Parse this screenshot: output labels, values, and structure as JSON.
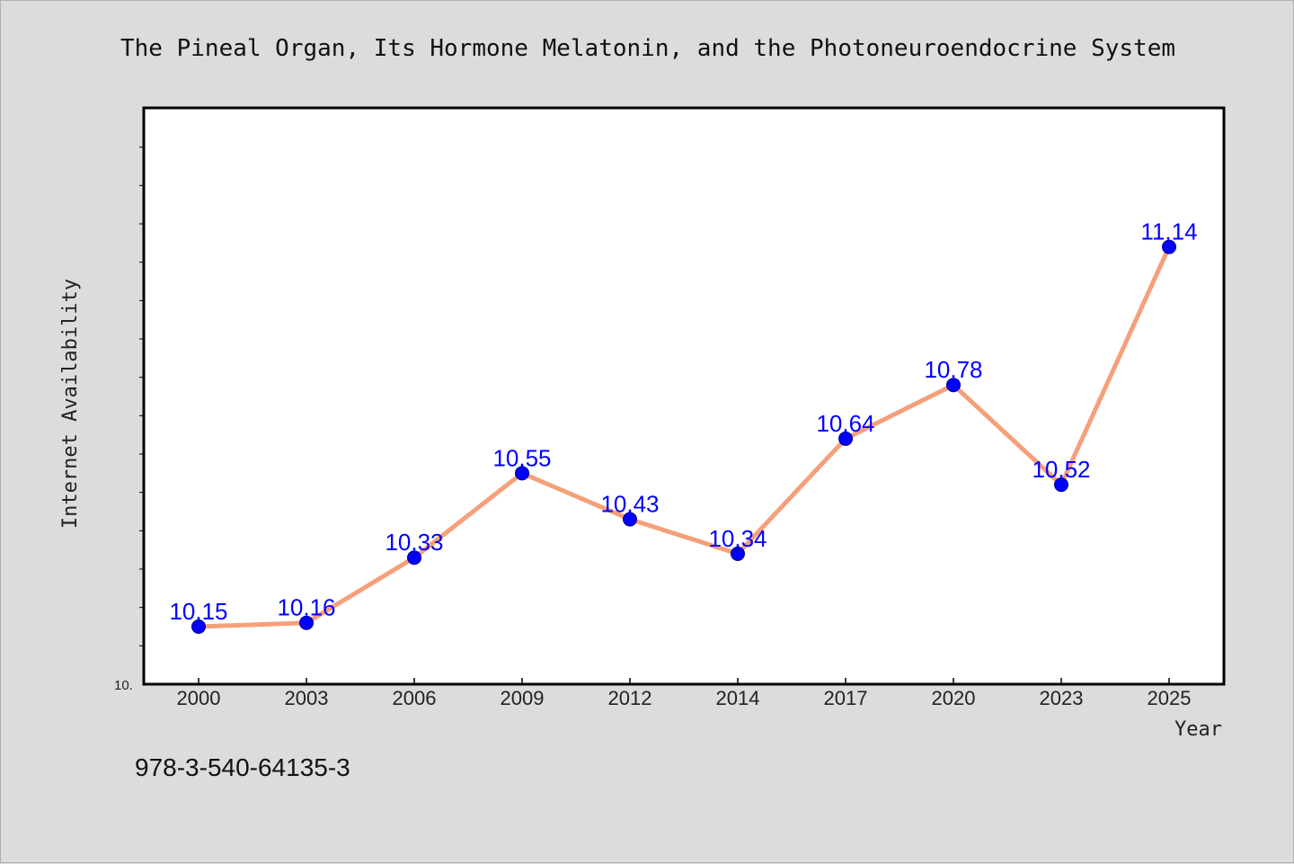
{
  "chart_data": {
    "type": "line",
    "title": "The Pineal Organ, Its Hormone Melatonin, and the Photoneuroendocrine System",
    "xlabel": "Year",
    "ylabel": "Internet Availability",
    "categories": [
      "2000",
      "2003",
      "2006",
      "2009",
      "2012",
      "2014",
      "2017",
      "2020",
      "2023",
      "2025"
    ],
    "series": [
      {
        "values": [
          10.15,
          10.16,
          10.33,
          10.55,
          10.43,
          10.34,
          10.64,
          10.78,
          10.52,
          11.14
        ],
        "line_color": "#f5a07a",
        "marker_color": "#0000ff"
      }
    ],
    "ylim": [
      10.0,
      11.5
    ],
    "y_tick_labels": [
      "10."
    ],
    "grid": false,
    "legend": "none"
  },
  "footer": {
    "isbn": "978-3-540-64135-3"
  }
}
